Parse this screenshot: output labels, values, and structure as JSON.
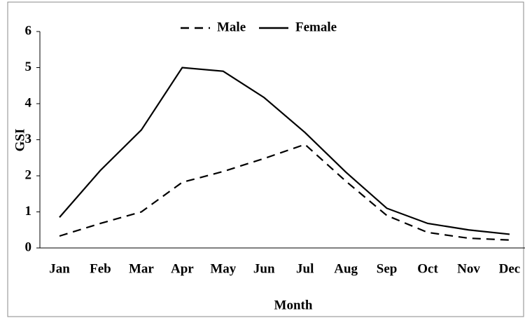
{
  "chart_data": {
    "type": "line",
    "xlabel": "Month",
    "ylabel": "GSI",
    "categories": [
      "Jan",
      "Feb",
      "Mar",
      "Apr",
      "May",
      "Jun",
      "Jul",
      "Aug",
      "Sep",
      "Oct",
      "Nov",
      "Dec"
    ],
    "series": [
      {
        "name": "Male",
        "color": "#000000",
        "dash": true,
        "values": [
          0.33,
          0.68,
          1.0,
          1.82,
          2.12,
          2.48,
          2.87,
          1.85,
          0.9,
          0.43,
          0.27,
          0.22
        ]
      },
      {
        "name": "Female",
        "color": "#000000",
        "dash": false,
        "values": [
          0.85,
          2.15,
          3.27,
          5.0,
          4.9,
          4.17,
          3.2,
          2.1,
          1.1,
          0.68,
          0.5,
          0.38
        ]
      }
    ],
    "ylim": [
      0,
      6
    ],
    "yticks": [
      0,
      1,
      2,
      3,
      4,
      5,
      6
    ],
    "grid": false,
    "legend": "top"
  }
}
